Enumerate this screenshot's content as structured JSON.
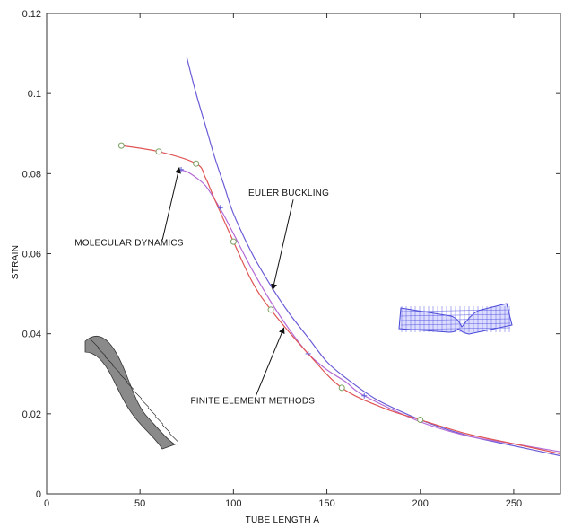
{
  "chart_data": {
    "type": "line",
    "xlabel": "TUBE LENGTH  A",
    "ylabel": "STRAIN",
    "xlim": [
      0,
      275
    ],
    "ylim": [
      0,
      0.12
    ],
    "xticks": [
      0,
      50,
      100,
      150,
      200,
      250
    ],
    "yticks": [
      0,
      0.02,
      0.04,
      0.06,
      0.08,
      0.1,
      0.12
    ],
    "ytick_labels": [
      "0",
      "0.02",
      "0.04",
      "0.06",
      "0.08",
      "0.1",
      "0.12"
    ],
    "grid": false,
    "series": [
      {
        "name": "EULER BUCKLING",
        "color": "#6a5cd6",
        "x": [
          75,
          80,
          85,
          90,
          95,
          100,
          110,
          120,
          130,
          140,
          150,
          160,
          175,
          190,
          200,
          215,
          230,
          250,
          275
        ],
        "y": [
          0.109,
          0.1,
          0.092,
          0.084,
          0.077,
          0.07,
          0.06,
          0.052,
          0.045,
          0.039,
          0.033,
          0.029,
          0.024,
          0.0205,
          0.0185,
          0.016,
          0.014,
          0.012,
          0.0095
        ]
      },
      {
        "name": "MOLECULAR DYNAMICS",
        "color": "#b36ad6",
        "marker": "plus",
        "x": [
          70,
          75,
          80,
          85,
          90,
          95,
          100,
          110,
          120,
          130,
          140,
          150,
          160,
          170,
          200,
          225,
          250,
          275
        ],
        "y": [
          0.081,
          0.0805,
          0.079,
          0.077,
          0.0735,
          0.0695,
          0.065,
          0.056,
          0.048,
          0.041,
          0.035,
          0.031,
          0.028,
          0.0245,
          0.018,
          0.0145,
          0.0125,
          0.0105
        ]
      },
      {
        "name": "FINITE ELEMENT METHODS",
        "color": "#e05555",
        "marker": "circle",
        "x": [
          40,
          60,
          80,
          85,
          90,
          100,
          110,
          120,
          140,
          158,
          180,
          200,
          225,
          250,
          275
        ],
        "y": [
          0.087,
          0.0855,
          0.0825,
          0.079,
          0.0735,
          0.063,
          0.053,
          0.046,
          0.035,
          0.0265,
          0.0215,
          0.0185,
          0.015,
          0.0125,
          0.01
        ]
      }
    ],
    "markers": {
      "FINITE ELEMENT METHODS": {
        "x": [
          40,
          60,
          80,
          100,
          120,
          158,
          200
        ],
        "y": [
          0.087,
          0.0855,
          0.0825,
          0.063,
          0.046,
          0.0265,
          0.0185
        ]
      },
      "MOLECULAR DYNAMICS": {
        "x": [
          72,
          93,
          140,
          170
        ],
        "y": [
          0.081,
          0.0715,
          0.035,
          0.0245
        ]
      }
    },
    "annotations": [
      {
        "text": "EULER BUCKLING",
        "label_x": 108,
        "label_y": 0.0745,
        "arrow_from": [
          132,
          0.0735
        ],
        "arrow_to": [
          121,
          0.051
        ]
      },
      {
        "text": "MOLECULAR DYNAMICS",
        "label_x": 15,
        "label_y": 0.062,
        "arrow_from": [
          62,
          0.0635
        ],
        "arrow_to": [
          71,
          0.0815
        ]
      },
      {
        "text": "FINITE ELEMENT METHODS",
        "label_x": 77,
        "label_y": 0.0225,
        "arrow_from": [
          112,
          0.0245
        ],
        "arrow_to": [
          127,
          0.0415
        ]
      }
    ]
  },
  "images": {
    "twisted_tube_icon": "twisted-nanotube-gray",
    "bent_tube_icon": "buckled-nanotube-blue"
  }
}
